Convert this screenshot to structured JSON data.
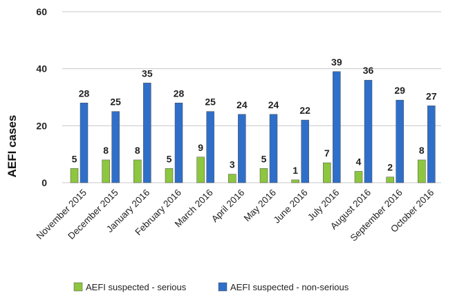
{
  "chart_data": {
    "type": "bar",
    "title": "",
    "xlabel": "",
    "ylabel": "AEFI cases",
    "ylim": [
      0,
      60
    ],
    "yticks": [
      0,
      20,
      40,
      60
    ],
    "grid": true,
    "legend_position": "bottom",
    "categories": [
      "November 2015",
      "December 2015",
      "January 2016",
      "February 2016",
      "March 2016",
      "April 2016",
      "May 2016",
      "June 2016",
      "July 2016",
      "August 2016",
      "September 2016",
      "October 2016"
    ],
    "series": [
      {
        "name": "AEFI suspected - serious",
        "color": "#8dc63f",
        "values": [
          5,
          8,
          8,
          5,
          9,
          3,
          5,
          1,
          7,
          4,
          2,
          8
        ]
      },
      {
        "name": "AEFI suspected - non-serious",
        "color": "#2f6fc9",
        "values": [
          28,
          25,
          35,
          28,
          25,
          24,
          24,
          22,
          39,
          36,
          29,
          27
        ]
      }
    ]
  }
}
